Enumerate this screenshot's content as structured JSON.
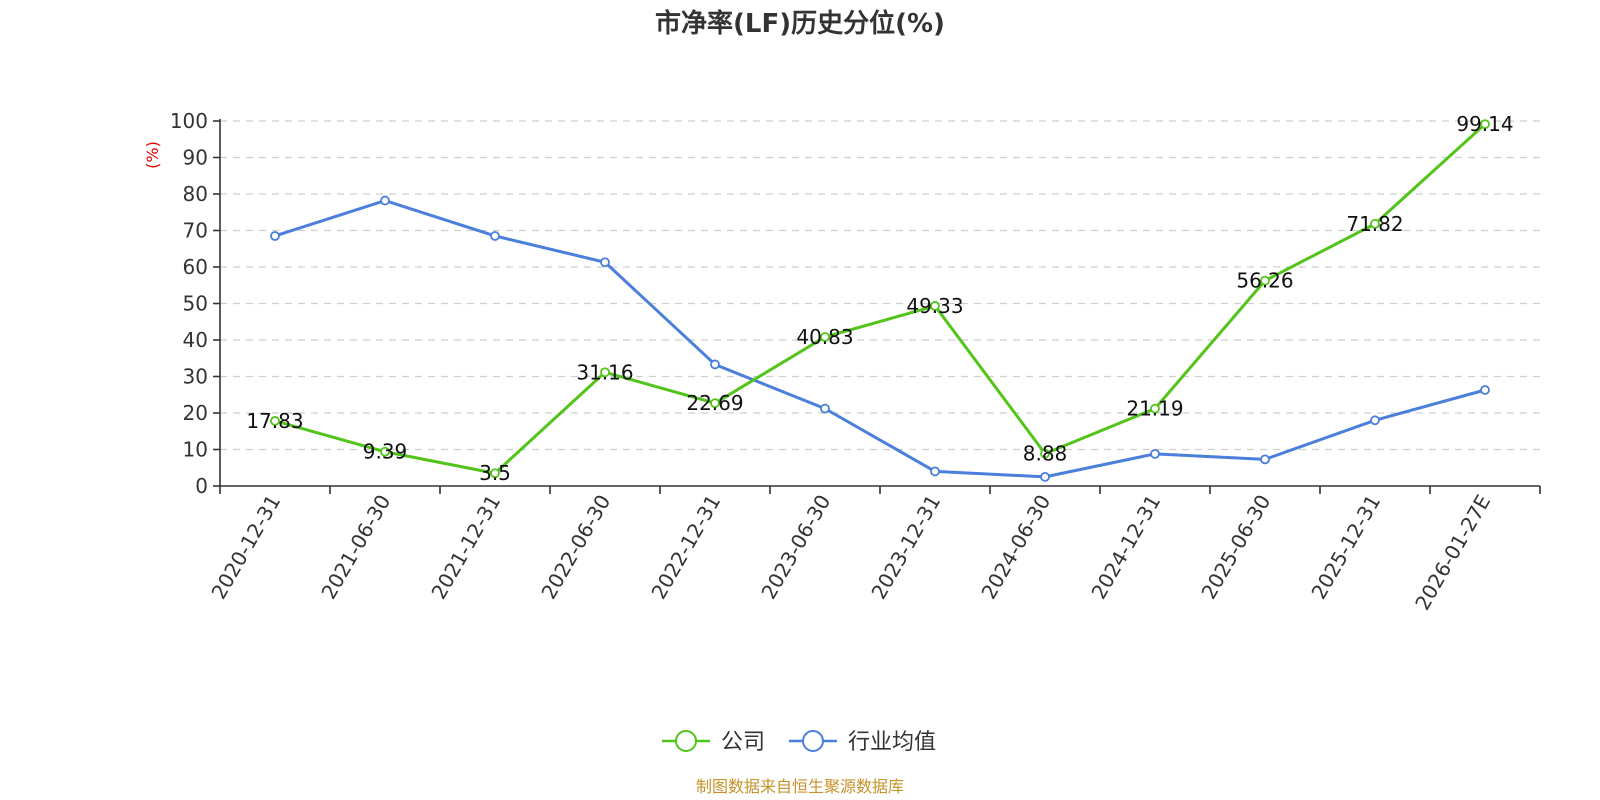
{
  "chart_data": {
    "type": "line",
    "title": "市净率(LF)历史分位(%)",
    "ylabel": "(%)",
    "ylim": [
      0,
      100
    ],
    "yticks": [
      0,
      10,
      20,
      30,
      40,
      50,
      60,
      70,
      80,
      90,
      100
    ],
    "grid": true,
    "categories": [
      "2020-12-31",
      "2021-06-30",
      "2021-12-31",
      "2022-06-30",
      "2022-12-31",
      "2023-06-30",
      "2023-12-31",
      "2024-06-30",
      "2024-12-31",
      "2025-06-30",
      "2025-12-31",
      "2026-01-27E"
    ],
    "series": [
      {
        "name": "公司",
        "color": "#52c41a",
        "values": [
          17.83,
          9.39,
          3.5,
          31.16,
          22.69,
          40.83,
          49.33,
          8.88,
          21.19,
          56.26,
          71.82,
          99.14
        ],
        "labels": [
          "17.83",
          "9.39",
          "3.5",
          "31.16",
          "22.69",
          "40.83",
          "49.33",
          "8.88",
          "21.19",
          "56.26",
          "71.82",
          "99.14"
        ]
      },
      {
        "name": "行业均值",
        "color": "#4a7fdb",
        "values": [
          68.5,
          78.2,
          68.5,
          61.3,
          33.3,
          21.2,
          4.0,
          2.5,
          8.8,
          7.3,
          18.0,
          26.3
        ]
      }
    ],
    "legend_position": "bottom-center",
    "ylabel_color": "#e00000"
  },
  "source": {
    "text": "制图数据来自恒生聚源数据库",
    "color": "#c8922a"
  }
}
